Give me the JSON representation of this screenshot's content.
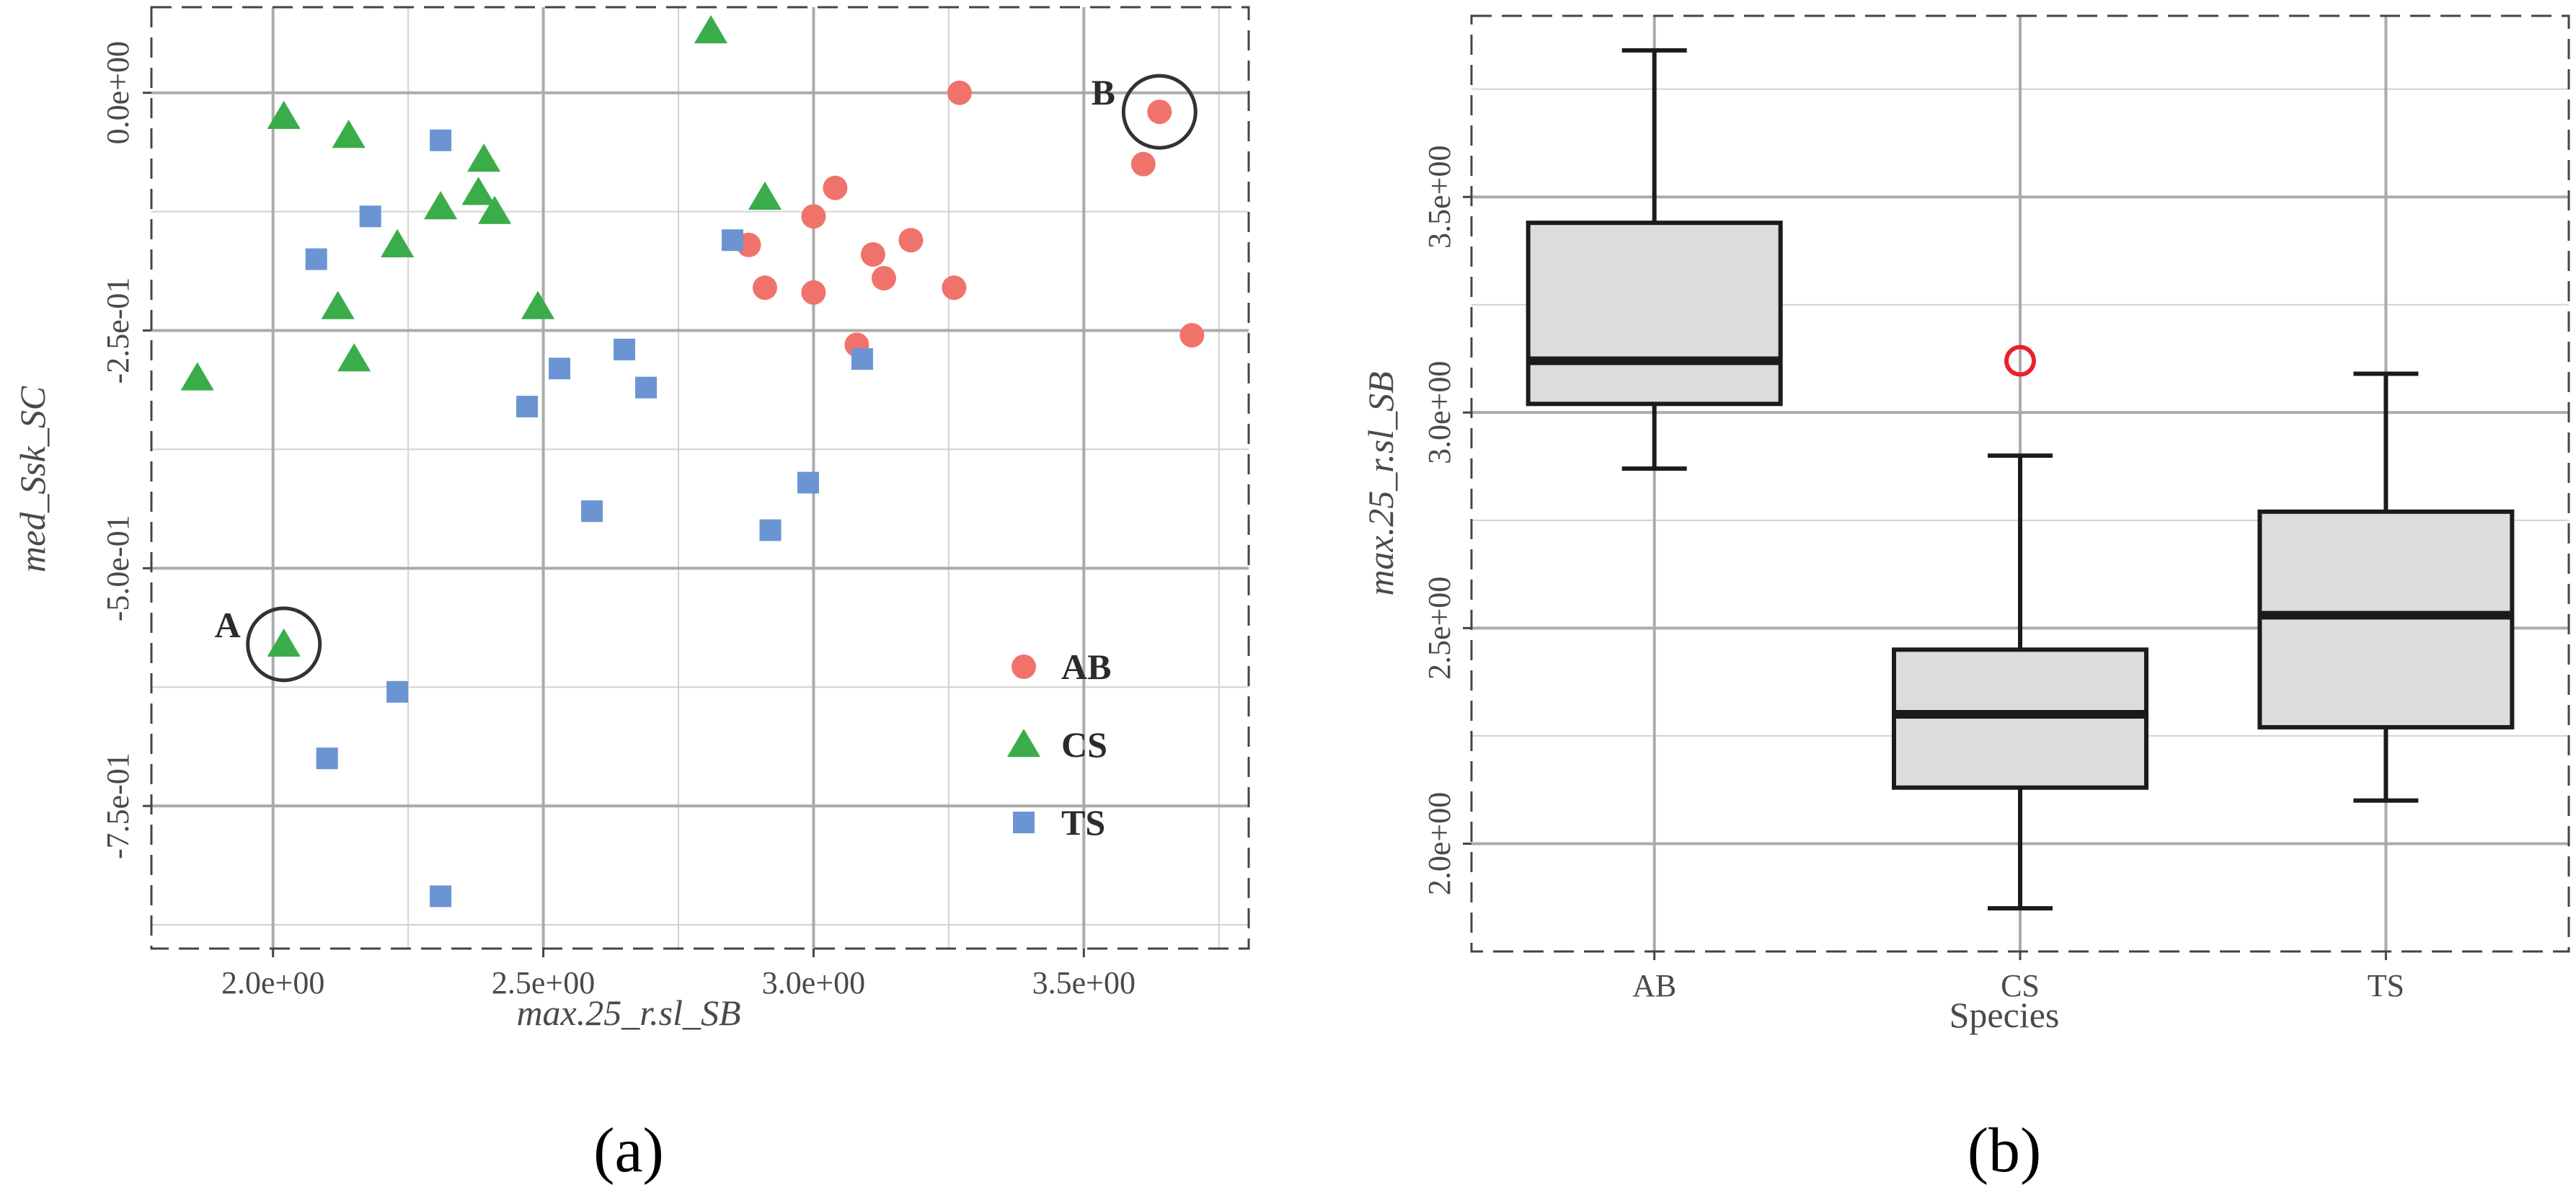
{
  "colors": {
    "AB": "#f0736b",
    "CS": "#3aac4a",
    "TS": "#6a95d2",
    "panel": "#ffffff",
    "grid": "#ababab",
    "grid_minor": "#d2d2d2",
    "frame": "#444444",
    "box_fill": "#dcdcde",
    "box_line": "#1b1b1b",
    "outlier": "#e8212a"
  },
  "chart_data": [
    {
      "id": "a",
      "type": "scatter",
      "caption": "(a)",
      "xlabel": "max.25_r.sl_SB",
      "ylabel": "med_Ssk_SC",
      "xlim": [
        1.775,
        3.805
      ],
      "ylim": [
        -0.9,
        0.09
      ],
      "xticks": [
        2.0,
        2.5,
        3.0,
        3.5
      ],
      "xtick_labels": [
        "2.0e+00",
        "2.5e+00",
        "3.0e+00",
        "3.5e+00"
      ],
      "yticks": [
        0.0,
        -0.25,
        -0.5,
        -0.75
      ],
      "ytick_labels": [
        "0.0e+00",
        "-2.5e-01",
        "-5.0e-01",
        "-7.5e-01"
      ],
      "legend_position": "bottom-right",
      "legend": [
        "AB",
        "CS",
        "TS"
      ],
      "series": [
        {
          "name": "AB",
          "marker": "circle",
          "points": [
            [
              3.27,
              0.0
            ],
            [
              3.64,
              -0.02
            ],
            [
              3.61,
              -0.075
            ],
            [
              3.04,
              -0.1
            ],
            [
              3.0,
              -0.13
            ],
            [
              2.88,
              -0.16
            ],
            [
              3.11,
              -0.17
            ],
            [
              3.18,
              -0.155
            ],
            [
              3.13,
              -0.195
            ],
            [
              2.91,
              -0.205
            ],
            [
              3.0,
              -0.21
            ],
            [
              3.26,
              -0.205
            ],
            [
              3.08,
              -0.265
            ],
            [
              3.7,
              -0.255
            ]
          ]
        },
        {
          "name": "CS",
          "marker": "triangle",
          "points": [
            [
              2.81,
              0.065
            ],
            [
              2.02,
              -0.025
            ],
            [
              2.14,
              -0.045
            ],
            [
              2.39,
              -0.07
            ],
            [
              2.38,
              -0.105
            ],
            [
              2.31,
              -0.12
            ],
            [
              2.41,
              -0.125
            ],
            [
              2.91,
              -0.11
            ],
            [
              2.23,
              -0.16
            ],
            [
              2.12,
              -0.225
            ],
            [
              2.49,
              -0.225
            ],
            [
              2.15,
              -0.28
            ],
            [
              1.86,
              -0.3
            ],
            [
              2.02,
              -0.58
            ]
          ]
        },
        {
          "name": "TS",
          "marker": "square",
          "points": [
            [
              2.31,
              -0.05
            ],
            [
              2.18,
              -0.13
            ],
            [
              2.08,
              -0.175
            ],
            [
              2.85,
              -0.155
            ],
            [
              2.53,
              -0.29
            ],
            [
              2.65,
              -0.27
            ],
            [
              3.09,
              -0.28
            ],
            [
              2.47,
              -0.33
            ],
            [
              2.69,
              -0.31
            ],
            [
              2.99,
              -0.41
            ],
            [
              2.59,
              -0.44
            ],
            [
              2.92,
              -0.46
            ],
            [
              2.23,
              -0.63
            ],
            [
              2.1,
              -0.7
            ],
            [
              2.31,
              -0.845
            ]
          ]
        }
      ],
      "annotations": [
        {
          "label": "A",
          "x": 2.02,
          "y": -0.58
        },
        {
          "label": "B",
          "x": 3.64,
          "y": -0.02
        }
      ]
    },
    {
      "id": "b",
      "type": "box",
      "caption": "(b)",
      "xlabel": "Species",
      "ylabel": "max.25_r.sl_SB",
      "categories": [
        "AB",
        "CS",
        "TS"
      ],
      "ylim": [
        1.75,
        3.92
      ],
      "yticks": [
        2.0,
        2.5,
        3.0,
        3.5
      ],
      "ytick_labels": [
        "2.0e+00",
        "2.5e+00",
        "3.0e+00",
        "3.5e+00"
      ],
      "boxes": [
        {
          "name": "AB",
          "whisker_low": 2.87,
          "q1": 3.02,
          "median": 3.12,
          "q3": 3.44,
          "whisker_high": 3.84,
          "outliers": []
        },
        {
          "name": "CS",
          "whisker_low": 1.85,
          "q1": 2.13,
          "median": 2.3,
          "q3": 2.45,
          "whisker_high": 2.9,
          "outliers": [
            3.12
          ]
        },
        {
          "name": "TS",
          "whisker_low": 2.1,
          "q1": 2.27,
          "median": 2.53,
          "q3": 2.77,
          "whisker_high": 3.09,
          "outliers": []
        }
      ]
    }
  ]
}
